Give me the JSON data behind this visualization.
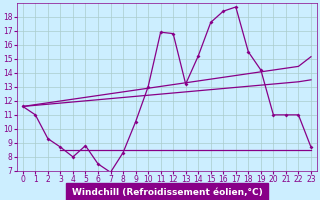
{
  "xlabel": "Windchill (Refroidissement éolien,°C)",
  "background_color": "#cceeff",
  "grid_color": "#aacccc",
  "line_color": "#880088",
  "x_hours": [
    0,
    1,
    2,
    3,
    4,
    5,
    6,
    7,
    8,
    9,
    10,
    11,
    12,
    13,
    14,
    15,
    16,
    17,
    18,
    19,
    20,
    21,
    22,
    23
  ],
  "temp_line": [
    11.6,
    11.0,
    9.3,
    8.7,
    8.0,
    8.8,
    7.5,
    6.9,
    8.3,
    10.5,
    13.0,
    16.9,
    16.8,
    13.2,
    15.2,
    17.6,
    18.4,
    18.7,
    15.5,
    14.2,
    11.0,
    11.0,
    11.0,
    8.7
  ],
  "linear_upper": [
    11.6,
    11.73,
    11.86,
    11.99,
    12.12,
    12.25,
    12.38,
    12.51,
    12.64,
    12.77,
    12.9,
    13.03,
    13.16,
    13.29,
    13.42,
    13.55,
    13.68,
    13.81,
    13.94,
    14.07,
    14.2,
    14.33,
    14.46,
    15.15
  ],
  "linear_lower": [
    11.6,
    11.68,
    11.76,
    11.84,
    11.92,
    12.0,
    12.08,
    12.16,
    12.24,
    12.32,
    12.4,
    12.48,
    12.56,
    12.64,
    12.72,
    12.8,
    12.88,
    12.96,
    13.04,
    13.12,
    13.2,
    13.28,
    13.36,
    13.5
  ],
  "flat_line_y": 8.5,
  "flat_line_x1": 3,
  "flat_line_x2": 23,
  "ylim": [
    7,
    19
  ],
  "xlim_min": -0.5,
  "xlim_max": 23.5,
  "yticks": [
    7,
    8,
    9,
    10,
    11,
    12,
    13,
    14,
    15,
    16,
    17,
    18
  ],
  "xtick_labels": [
    "0",
    "1",
    "2",
    "3",
    "4",
    "5",
    "6",
    "7",
    "8",
    "9",
    "10",
    "11",
    "12",
    "13",
    "14",
    "15",
    "16",
    "17",
    "18",
    "19",
    "20",
    "21",
    "22",
    "23"
  ],
  "xlabel_fontsize": 6.5,
  "tick_fontsize": 5.5,
  "linewidth": 0.9,
  "marker": "D",
  "markersize": 2.0,
  "xlabel_bg": "#880088",
  "xlabel_fg": "#ffffff"
}
